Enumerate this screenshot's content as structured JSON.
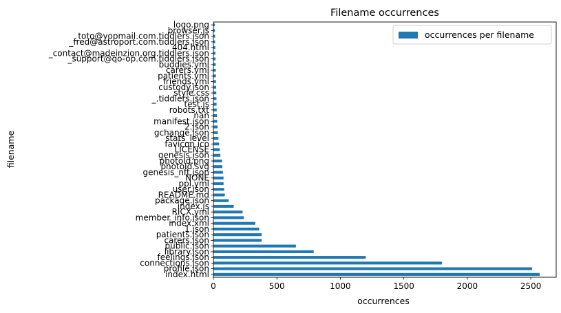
{
  "chart_data": {
    "type": "bar",
    "orientation": "horizontal",
    "title": "Filename occurrences",
    "xlabel": "occurrences",
    "ylabel": "filename",
    "xlim": [
      0,
      2700
    ],
    "xticks": [
      0,
      500,
      1000,
      1500,
      2000,
      2500
    ],
    "grid": false,
    "legend_position": "upper right",
    "bar_color": "#1f77b4",
    "series": [
      {
        "name": "occurrences per filename"
      }
    ],
    "categories": [
      "index.html",
      "profile.json",
      "connections.json",
      "feelings.json",
      "library.json",
      "public.json",
      "carers.json",
      "patients.json",
      "1.json",
      "index.xml",
      "member_info.json",
      "RICX.yml",
      "index.js",
      "package.json",
      "README.md",
      "user.json",
      "ppl.yml",
      "NONE",
      "genesis_nft.json",
      "photoId.svg",
      "photoId.png",
      "genesis.json",
      "LICENSE",
      "favicon.ico",
      "stats_level",
      "gchange.json",
      "2.json",
      "manifest.json",
      "nan",
      "robots.txt",
      "test.js",
      "_.tiddlers.json",
      "style.css",
      "custody.json",
      "friends.yml",
      "patients.yml",
      "carers.yml",
      "buddies.yml",
      "_support@qo-op.com.tiddlers.json",
      "_contact@madeinzion.org.tiddlers.json",
      "404.html",
      "_fred@astroport.com.tiddlers.json",
      "_toto@yopmail.com.tiddlers.json",
      "browser.js",
      "logo.png"
    ],
    "values": [
      2570,
      2510,
      1800,
      1200,
      790,
      650,
      380,
      380,
      360,
      330,
      240,
      230,
      160,
      120,
      90,
      85,
      80,
      80,
      75,
      70,
      68,
      55,
      50,
      45,
      40,
      35,
      33,
      30,
      28,
      26,
      25,
      24,
      23,
      22,
      21,
      20,
      19,
      18,
      17,
      16,
      15,
      14,
      13,
      12,
      11
    ]
  }
}
